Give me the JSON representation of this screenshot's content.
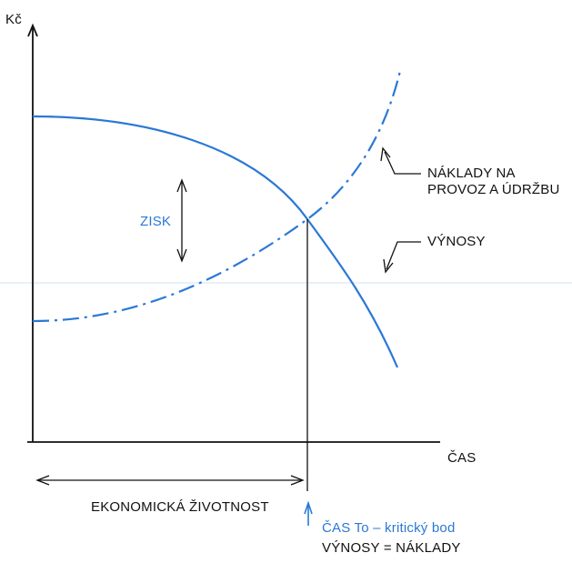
{
  "axes": {
    "y_label": "Kč",
    "x_label": "ČAS"
  },
  "labels": {
    "profit": "ZISK",
    "costs_line1": "NÁKLADY NA",
    "costs_line2": "PROVOZ A ÚDRŽBU",
    "revenue": "VÝNOSY",
    "economic_life": "EKONOMICKÁ ŽIVOTNOST",
    "critical_time": "ČAS To – kritický bod",
    "equality": "VÝNOSY = NÁKLADY"
  },
  "colors": {
    "curve": "#2a78d6",
    "axes": "#111111",
    "guide": "#cfe3f5"
  },
  "curves": {
    "revenue_style": "solid",
    "costs_style": "dash-dot"
  }
}
